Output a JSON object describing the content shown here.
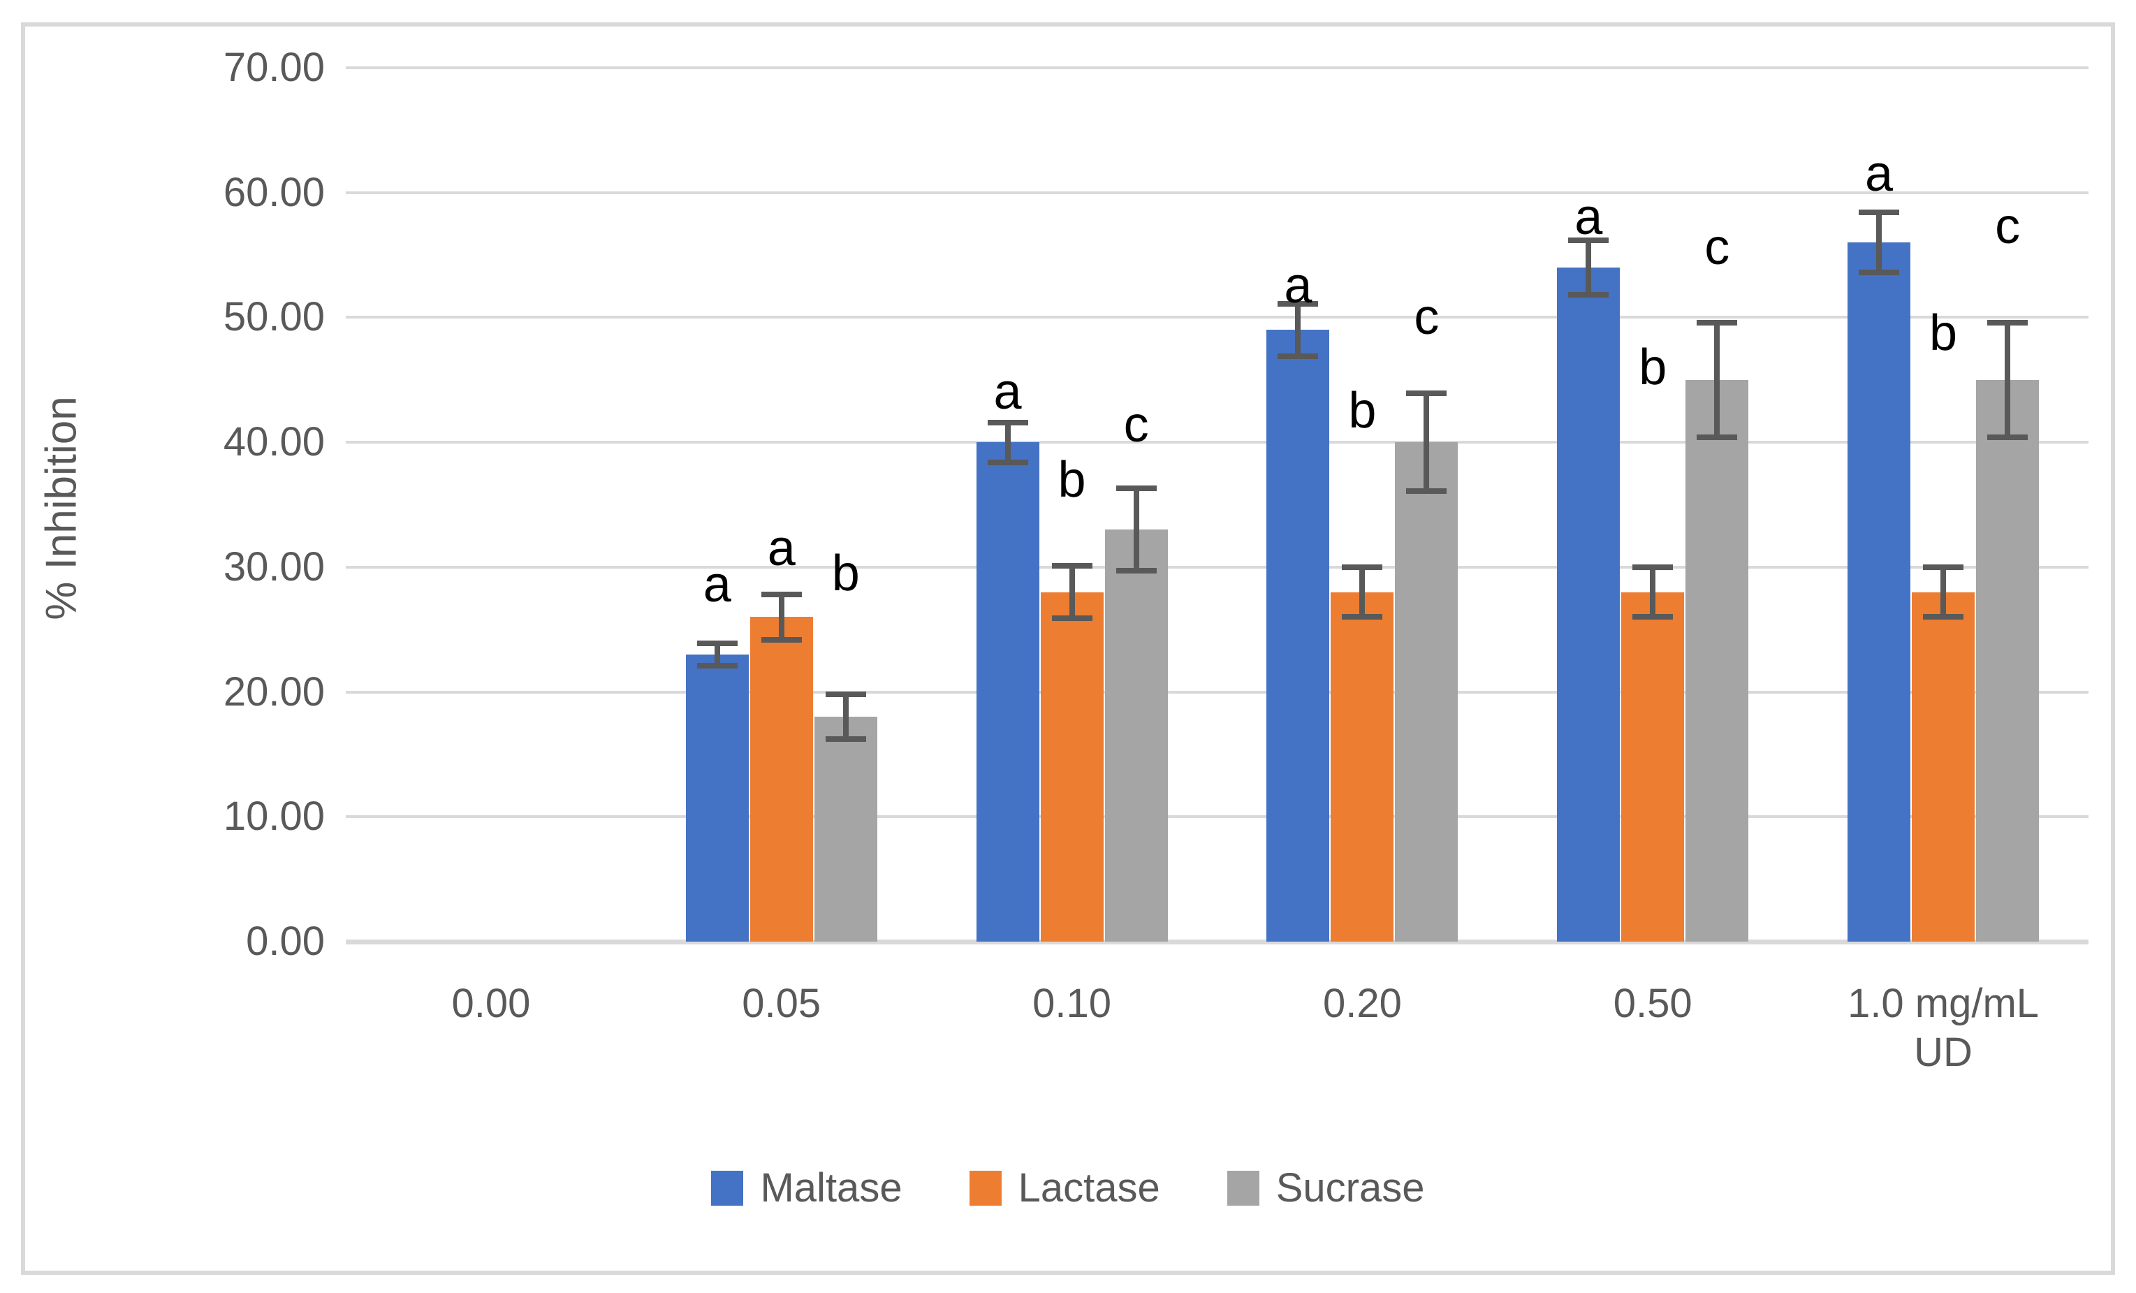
{
  "chart_data": {
    "type": "bar",
    "title": "",
    "xlabel": "",
    "ylabel": "% Inhibition",
    "ylim": [
      0,
      70
    ],
    "ytick_step": 10,
    "ytick_decimals": 2,
    "grid": true,
    "legend_position": "bottom",
    "categories": [
      "0.00",
      "0.05",
      "0.10",
      "0.20",
      "0.50",
      "1.0 mg/mL"
    ],
    "categories_line2": [
      "",
      "",
      "",
      "",
      "",
      "UD"
    ],
    "series": [
      {
        "name": "Maltase",
        "color": "#4472C4",
        "values": [
          0,
          23,
          40,
          49,
          54,
          56
        ],
        "errors": [
          0,
          0.9,
          1.6,
          2.1,
          2.2,
          2.4
        ],
        "letters": [
          "",
          "a",
          "a",
          "a",
          "a",
          "a"
        ],
        "letter_y": [
          0,
          26.6,
          42.0,
          50.5,
          56.0,
          59.5
        ]
      },
      {
        "name": "Lactase",
        "color": "#ED7D31",
        "values": [
          0,
          26,
          28,
          28,
          28,
          28
        ],
        "errors": [
          0,
          1.8,
          2.1,
          2.0,
          2.0,
          2.0
        ],
        "letters": [
          "",
          "a",
          "b",
          "b",
          "b",
          "b"
        ],
        "letter_y": [
          0,
          29.5,
          35.0,
          40.5,
          44.0,
          46.7
        ]
      },
      {
        "name": "Sucrase",
        "color": "#A5A5A5",
        "values": [
          0,
          18,
          33,
          40,
          45,
          45
        ],
        "errors": [
          0,
          1.8,
          3.3,
          3.9,
          4.6,
          4.6
        ],
        "letters": [
          "",
          "b",
          "c",
          "c",
          "c",
          "c"
        ],
        "letter_y": [
          0,
          27.5,
          39.4,
          48.0,
          53.6,
          55.3
        ]
      }
    ]
  },
  "styles": {
    "background": "#FFFFFF",
    "border_color": "#D9D9D9",
    "grid_color": "#D9D9D9",
    "axis_line_color": "#D9D9D9",
    "tick_color": "#595959",
    "error_bar_color": "#595959",
    "letter_color": "#000000"
  }
}
